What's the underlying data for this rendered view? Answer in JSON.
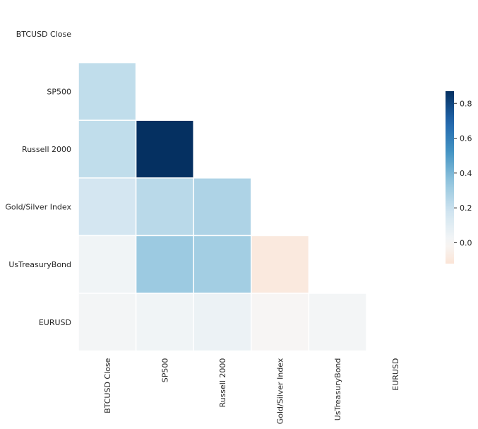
{
  "chart_data": {
    "type": "heatmap",
    "variant": "lower-triangle correlation matrix",
    "title": "",
    "xlabel": "",
    "ylabel": "",
    "row_labels": [
      "BTCUSD Close",
      "SP500",
      "Russell 2000",
      "Gold/Silver Index",
      "UsTreasuryBond",
      "EURUSD"
    ],
    "col_labels": [
      "BTCUSD Close",
      "SP500",
      "Russell 2000",
      "Gold/Silver Index",
      "UsTreasuryBond",
      "EURUSD"
    ],
    "values": [
      [
        null,
        null,
        null,
        null,
        null,
        null
      ],
      [
        0.22,
        null,
        null,
        null,
        null,
        null
      ],
      [
        0.22,
        0.87,
        null,
        null,
        null,
        null
      ],
      [
        0.16,
        0.24,
        0.27,
        null,
        null,
        null
      ],
      [
        0.03,
        0.32,
        0.3,
        -0.09,
        null,
        null
      ],
      [
        0.02,
        0.03,
        0.05,
        -0.01,
        0.02,
        null
      ]
    ],
    "colormap": "RdBu (centered at 0)",
    "vmin": -0.12,
    "vmax": 0.87,
    "colorbar": {
      "ticks": [
        0.0,
        0.2,
        0.4,
        0.6,
        0.8
      ],
      "tick_labels": [
        "0.0",
        "0.2",
        "0.4",
        "0.6",
        "0.8"
      ]
    },
    "grid": false,
    "cell_separator_color": "#ffffff"
  }
}
